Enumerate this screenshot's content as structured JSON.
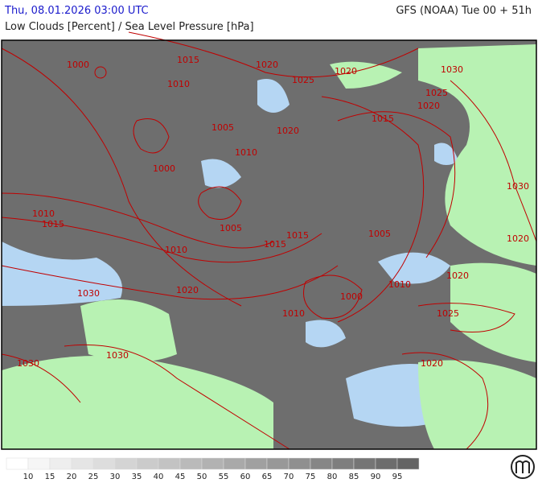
{
  "header": {
    "datetime": "Thu, 08.01.2026 03:00 UTC",
    "model": "GFS (NOAA) Tue 00 + 51h",
    "subtitle": "Low Clouds [Percent] / Sea Level Pressure [hPa]"
  },
  "map": {
    "isobar_labels": [
      1000,
      1015,
      1020,
      1020,
      1025,
      1030,
      1010,
      1025,
      1020,
      1015,
      1005,
      1020,
      1010,
      1000,
      1030,
      1010,
      1015,
      1005,
      1015,
      1005,
      1020,
      1015,
      1010,
      1010,
      1020,
      1030,
      1020,
      1000,
      1010,
      1025,
      1030,
      1030,
      1020
    ]
  },
  "legend": {
    "labels": [
      10,
      15,
      20,
      25,
      30,
      35,
      40,
      45,
      50,
      55,
      60,
      65,
      70,
      75,
      80,
      85,
      90,
      95
    ]
  }
}
